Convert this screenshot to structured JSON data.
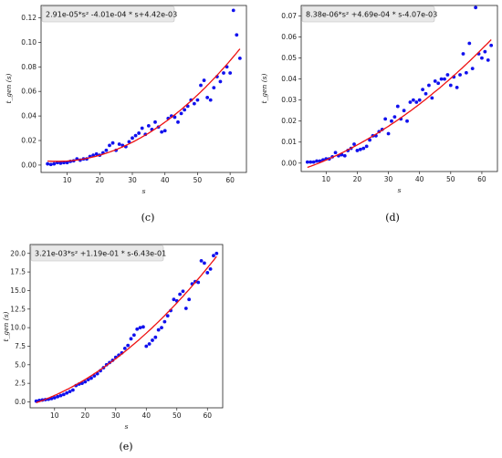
{
  "chart_data": [
    {
      "id": "c",
      "type": "scatter",
      "caption": "(c)",
      "equation": "2.91e-05*s² -4.01e-04 * s+4.42e-03",
      "xlabel": "s",
      "ylabel": "t_gen (s)",
      "xlim": [
        2,
        65
      ],
      "ylim": [
        -0.006,
        0.13
      ],
      "xticks": [
        10,
        20,
        30,
        40,
        50,
        60
      ],
      "yticks": [
        0.0,
        0.02,
        0.04,
        0.06,
        0.08,
        0.1,
        0.12
      ],
      "ytick_labels": [
        "0.00",
        "0.02",
        "0.04",
        "0.06",
        "0.08",
        "0.10",
        "0.12"
      ],
      "fit": {
        "a": 2.91e-05,
        "b": -0.000401,
        "c": 0.00442,
        "x_range": [
          4,
          63
        ]
      },
      "points": [
        [
          4,
          0.001
        ],
        [
          5,
          0.0005
        ],
        [
          6,
          0.001
        ],
        [
          7,
          0.002
        ],
        [
          8,
          0.0015
        ],
        [
          9,
          0.002
        ],
        [
          10,
          0.002
        ],
        [
          11,
          0.003
        ],
        [
          12,
          0.0035
        ],
        [
          13,
          0.005
        ],
        [
          14,
          0.004
        ],
        [
          15,
          0.005
        ],
        [
          16,
          0.005
        ],
        [
          17,
          0.007
        ],
        [
          18,
          0.008
        ],
        [
          19,
          0.009
        ],
        [
          20,
          0.008
        ],
        [
          21,
          0.01
        ],
        [
          22,
          0.012
        ],
        [
          23,
          0.016
        ],
        [
          24,
          0.018
        ],
        [
          25,
          0.012
        ],
        [
          26,
          0.017
        ],
        [
          27,
          0.016
        ],
        [
          28,
          0.015
        ],
        [
          29,
          0.019
        ],
        [
          30,
          0.022
        ],
        [
          31,
          0.024
        ],
        [
          32,
          0.026
        ],
        [
          33,
          0.03
        ],
        [
          34,
          0.025
        ],
        [
          35,
          0.032
        ],
        [
          36,
          0.029
        ],
        [
          37,
          0.035
        ],
        [
          38,
          0.031
        ],
        [
          39,
          0.027
        ],
        [
          40,
          0.028
        ],
        [
          41,
          0.038
        ],
        [
          42,
          0.04
        ],
        [
          43,
          0.039
        ],
        [
          44,
          0.035
        ],
        [
          45,
          0.042
        ],
        [
          46,
          0.045
        ],
        [
          47,
          0.048
        ],
        [
          48,
          0.053
        ],
        [
          49,
          0.05
        ],
        [
          50,
          0.053
        ],
        [
          51,
          0.065
        ],
        [
          52,
          0.069
        ],
        [
          53,
          0.055
        ],
        [
          54,
          0.053
        ],
        [
          55,
          0.063
        ],
        [
          56,
          0.072
        ],
        [
          57,
          0.068
        ],
        [
          58,
          0.075
        ],
        [
          59,
          0.08
        ],
        [
          60,
          0.075
        ],
        [
          61,
          0.126
        ],
        [
          62,
          0.106
        ],
        [
          63,
          0.087
        ]
      ]
    },
    {
      "id": "d",
      "type": "scatter",
      "caption": "(d)",
      "equation": "8.38e-06*s² +4.69e-04 * s-4.07e-03",
      "xlabel": "s",
      "ylabel": "t_gen (s)",
      "xlim": [
        2,
        65
      ],
      "ylim": [
        -0.004,
        0.075
      ],
      "xticks": [
        10,
        20,
        30,
        40,
        50,
        60
      ],
      "yticks": [
        0.0,
        0.01,
        0.02,
        0.03,
        0.04,
        0.05,
        0.06,
        0.07
      ],
      "ytick_labels": [
        "0.00",
        "0.01",
        "0.02",
        "0.03",
        "0.04",
        "0.05",
        "0.06",
        "0.07"
      ],
      "fit": {
        "a": 8.38e-06,
        "b": 0.000469,
        "c": -0.00407,
        "x_range": [
          4,
          63
        ]
      },
      "points": [
        [
          4,
          0.0005
        ],
        [
          5,
          0.0005
        ],
        [
          6,
          0.0005
        ],
        [
          7,
          0.001
        ],
        [
          8,
          0.001
        ],
        [
          9,
          0.0015
        ],
        [
          10,
          0.002
        ],
        [
          11,
          0.002
        ],
        [
          12,
          0.003
        ],
        [
          13,
          0.005
        ],
        [
          14,
          0.0035
        ],
        [
          15,
          0.004
        ],
        [
          16,
          0.0035
        ],
        [
          17,
          0.006
        ],
        [
          18,
          0.007
        ],
        [
          19,
          0.009
        ],
        [
          20,
          0.006
        ],
        [
          21,
          0.0065
        ],
        [
          22,
          0.007
        ],
        [
          23,
          0.008
        ],
        [
          24,
          0.011
        ],
        [
          25,
          0.013
        ],
        [
          26,
          0.013
        ],
        [
          27,
          0.015
        ],
        [
          28,
          0.016
        ],
        [
          29,
          0.021
        ],
        [
          30,
          0.014
        ],
        [
          31,
          0.02
        ],
        [
          32,
          0.022
        ],
        [
          33,
          0.027
        ],
        [
          34,
          0.021
        ],
        [
          35,
          0.025
        ],
        [
          36,
          0.02
        ],
        [
          37,
          0.029
        ],
        [
          38,
          0.03
        ],
        [
          39,
          0.029
        ],
        [
          40,
          0.03
        ],
        [
          41,
          0.035
        ],
        [
          42,
          0.033
        ],
        [
          43,
          0.037
        ],
        [
          44,
          0.031
        ],
        [
          45,
          0.039
        ],
        [
          46,
          0.038
        ],
        [
          47,
          0.04
        ],
        [
          48,
          0.04
        ],
        [
          49,
          0.042
        ],
        [
          50,
          0.037
        ],
        [
          51,
          0.041
        ],
        [
          52,
          0.036
        ],
        [
          53,
          0.042
        ],
        [
          54,
          0.052
        ],
        [
          55,
          0.043
        ],
        [
          56,
          0.057
        ],
        [
          57,
          0.045
        ],
        [
          58,
          0.074
        ],
        [
          59,
          0.052
        ],
        [
          60,
          0.05
        ],
        [
          61,
          0.053
        ],
        [
          62,
          0.049
        ],
        [
          63,
          0.056
        ]
      ]
    },
    {
      "id": "e",
      "type": "scatter",
      "caption": "(e)",
      "equation": "3.21e-03*s² +1.19e-01 * s-6.43e-01",
      "xlabel": "s",
      "ylabel": "t_gen (s)",
      "xlim": [
        2,
        65
      ],
      "ylim": [
        -0.8,
        21.2
      ],
      "xticks": [
        10,
        20,
        30,
        40,
        50,
        60
      ],
      "yticks": [
        0.0,
        2.5,
        5.0,
        7.5,
        10.0,
        12.5,
        15.0,
        17.5,
        20.0
      ],
      "ytick_labels": [
        "0.0",
        "2.5",
        "5.0",
        "7.5",
        "10.0",
        "12.5",
        "15.0",
        "17.5",
        "20.0"
      ],
      "fit": {
        "a": 0.00321,
        "b": 0.119,
        "c": -0.643,
        "x_range": [
          4,
          63
        ]
      },
      "points": [
        [
          4,
          0.1
        ],
        [
          5,
          0.2
        ],
        [
          6,
          0.25
        ],
        [
          7,
          0.3
        ],
        [
          8,
          0.35
        ],
        [
          9,
          0.45
        ],
        [
          10,
          0.55
        ],
        [
          11,
          0.7
        ],
        [
          12,
          0.85
        ],
        [
          13,
          1.0
        ],
        [
          14,
          1.2
        ],
        [
          15,
          1.4
        ],
        [
          16,
          1.6
        ],
        [
          17,
          2.2
        ],
        [
          18,
          2.4
        ],
        [
          19,
          2.5
        ],
        [
          20,
          2.7
        ],
        [
          21,
          3.0
        ],
        [
          22,
          3.2
        ],
        [
          23,
          3.5
        ],
        [
          24,
          3.8
        ],
        [
          25,
          4.2
        ],
        [
          26,
          4.6
        ],
        [
          27,
          5.0
        ],
        [
          28,
          5.3
        ],
        [
          29,
          5.6
        ],
        [
          30,
          6.0
        ],
        [
          31,
          6.3
        ],
        [
          32,
          6.6
        ],
        [
          33,
          7.2
        ],
        [
          34,
          7.6
        ],
        [
          35,
          8.5
        ],
        [
          36,
          9.0
        ],
        [
          37,
          9.8
        ],
        [
          38,
          10.0
        ],
        [
          39,
          10.1
        ],
        [
          40,
          7.5
        ],
        [
          41,
          7.8
        ],
        [
          42,
          8.3
        ],
        [
          43,
          8.7
        ],
        [
          44,
          9.7
        ],
        [
          45,
          10.0
        ],
        [
          46,
          10.8
        ],
        [
          47,
          11.6
        ],
        [
          48,
          12.3
        ],
        [
          49,
          13.8
        ],
        [
          50,
          13.6
        ],
        [
          51,
          14.5
        ],
        [
          52,
          14.9
        ],
        [
          53,
          12.6
        ],
        [
          54,
          13.8
        ],
        [
          55,
          15.9
        ],
        [
          56,
          16.2
        ],
        [
          57,
          16.1
        ],
        [
          58,
          19.0
        ],
        [
          59,
          18.7
        ],
        [
          60,
          17.4
        ],
        [
          61,
          17.9
        ],
        [
          62,
          19.7
        ],
        [
          63,
          20.0
        ]
      ]
    }
  ],
  "colors": {
    "points": "#1111ee",
    "fit": "#ee1111",
    "axis": "#222222",
    "legend_bg": "#e8e8e8"
  }
}
